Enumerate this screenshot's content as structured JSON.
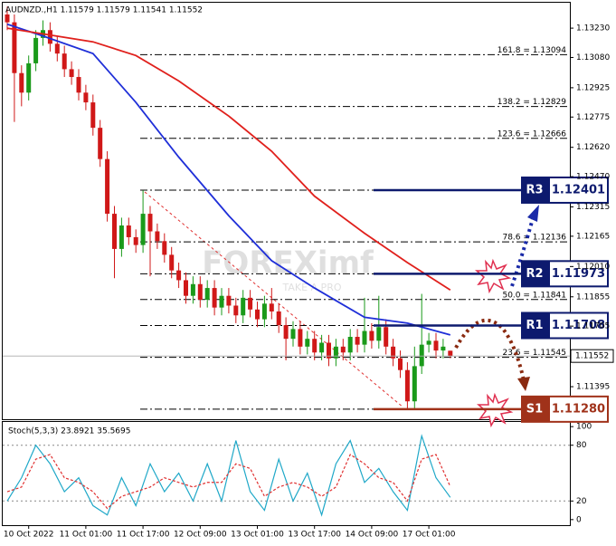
{
  "chart_data": [
    {
      "type": "candlestick",
      "title": "AUDNZD.,H1  1.11579 1.11579 1.11541 1.11552",
      "watermark": [
        "FOREXimf",
        "TAKE A PRO"
      ],
      "categories": [
        null,
        null,
        null,
        "10 Oct 2022",
        null,
        null,
        null,
        null,
        null,
        null,
        null,
        "11 Oct 01:00",
        null,
        null,
        null,
        null,
        null,
        null,
        null,
        "11 Oct 17:00",
        null,
        null,
        null,
        null,
        null,
        null,
        null,
        "12 Oct 09:00",
        null,
        null,
        null,
        null,
        null,
        null,
        null,
        "13 Oct 01:00",
        null,
        null,
        null,
        null,
        null,
        null,
        null,
        "13 Oct 17:00",
        null,
        null,
        null,
        null,
        null,
        null,
        null,
        "14 Oct 09:00",
        null,
        null,
        null,
        null,
        null,
        null,
        null,
        "17 Oct 01:00",
        null,
        null,
        null
      ],
      "open": [
        1.133,
        1.1326,
        1.13,
        1.129,
        1.1305,
        1.1318,
        1.1322,
        1.1315,
        1.131,
        1.1302,
        1.1298,
        1.129,
        1.1285,
        1.1272,
        1.1256,
        1.1228,
        1.121,
        1.1222,
        1.1216,
        1.1212,
        1.1228,
        1.1219,
        1.1214,
        1.1207,
        1.1199,
        1.1194,
        1.1186,
        1.1192,
        1.1184,
        1.119,
        1.118,
        1.1186,
        1.1181,
        1.1176,
        1.1185,
        1.1179,
        1.1174,
        1.1182,
        1.1178,
        1.1171,
        1.1164,
        1.1169,
        1.116,
        1.1164,
        1.1157,
        1.1162,
        1.1154,
        1.116,
        1.1157,
        1.1165,
        1.1161,
        1.1168,
        1.1163,
        1.117,
        1.116,
        1.1154,
        1.1148,
        1.1132,
        1.115,
        1.1161,
        1.1163,
        1.1158,
        1.11579
      ],
      "high": [
        1.1334,
        1.133,
        1.1304,
        1.1309,
        1.1322,
        1.1327,
        1.1326,
        1.1319,
        1.1314,
        1.1306,
        1.1302,
        1.1294,
        1.1289,
        1.1276,
        1.126,
        1.1232,
        1.1226,
        1.1226,
        1.122,
        1.124,
        1.1232,
        1.1223,
        1.1218,
        1.1211,
        1.1203,
        1.1198,
        1.1196,
        1.1196,
        1.1194,
        1.1194,
        1.119,
        1.119,
        1.1185,
        1.1189,
        1.1189,
        1.1183,
        1.1186,
        1.119,
        1.1182,
        1.1175,
        1.1173,
        1.1173,
        1.1168,
        1.1168,
        1.1166,
        1.1166,
        1.1164,
        1.1164,
        1.1169,
        1.1169,
        1.1185,
        1.1172,
        1.1186,
        1.1174,
        1.1164,
        1.1158,
        1.1152,
        1.116,
        1.1187,
        1.1167,
        1.1167,
        1.1164,
        1.11579
      ],
      "low": [
        1.1322,
        1.1275,
        1.1283,
        1.1286,
        1.1301,
        1.1314,
        1.1311,
        1.1306,
        1.1298,
        1.1294,
        1.1286,
        1.1281,
        1.1268,
        1.1252,
        1.1224,
        1.1195,
        1.1206,
        1.1212,
        1.1208,
        1.1208,
        1.1196,
        1.121,
        1.1203,
        1.1195,
        1.119,
        1.1182,
        1.1182,
        1.118,
        1.118,
        1.1176,
        1.1176,
        1.1177,
        1.1172,
        1.1172,
        1.1175,
        1.117,
        1.117,
        1.1174,
        1.1167,
        1.1153,
        1.116,
        1.1156,
        1.1156,
        1.1153,
        1.1153,
        1.115,
        1.115,
        1.1153,
        1.1153,
        1.1157,
        1.1157,
        1.1159,
        1.1159,
        1.1156,
        1.115,
        1.1144,
        1.1128,
        1.1128,
        1.1146,
        1.1157,
        1.1154,
        1.1154,
        1.11541
      ],
      "close": [
        1.1326,
        1.13,
        1.129,
        1.1305,
        1.1318,
        1.1322,
        1.1315,
        1.131,
        1.1302,
        1.1298,
        1.129,
        1.1285,
        1.1272,
        1.1256,
        1.1228,
        1.121,
        1.1222,
        1.1216,
        1.1212,
        1.1228,
        1.1219,
        1.1214,
        1.1207,
        1.1199,
        1.1194,
        1.1186,
        1.1192,
        1.1184,
        1.119,
        1.118,
        1.1186,
        1.1181,
        1.1176,
        1.1185,
        1.1179,
        1.1174,
        1.1182,
        1.1178,
        1.1171,
        1.1164,
        1.1169,
        1.116,
        1.1164,
        1.1157,
        1.1162,
        1.1154,
        1.116,
        1.1157,
        1.1165,
        1.1161,
        1.1168,
        1.1163,
        1.117,
        1.116,
        1.1154,
        1.1148,
        1.1132,
        1.115,
        1.1161,
        1.1163,
        1.1158,
        1.116,
        1.11552
      ],
      "up_color": "#1a9a1a",
      "down_color": "#d01818",
      "overlays": [
        {
          "color": "#1f2fd8",
          "x": [
            0,
            5,
            12,
            18,
            24,
            31,
            37,
            43,
            50,
            56,
            62
          ],
          "values": [
            1.1325,
            1.1319,
            1.131,
            1.1285,
            1.1257,
            1.1227,
            1.1204,
            1.119,
            1.1175,
            1.1172,
            1.1166
          ]
        },
        {
          "color": "#e0201c",
          "x": [
            0,
            12,
            18,
            24,
            31,
            37,
            43,
            50,
            56,
            62
          ],
          "values": [
            1.1323,
            1.1316,
            1.1309,
            1.1296,
            1.1278,
            1.126,
            1.1237,
            1.1218,
            1.1203,
            1.1189
          ]
        }
      ],
      "fib_levels": [
        {
          "value": 1.13094,
          "label": "161.8 = 1.13094"
        },
        {
          "value": 1.12829,
          "label": "138.2 = 1.12829"
        },
        {
          "value": 1.12666,
          "label": "123.6 = 1.12666"
        },
        {
          "value": 1.12401
        },
        {
          "value": 1.12136,
          "label": "78.6 = 1.12136"
        },
        {
          "value": 1.11973
        },
        {
          "value": 1.11841,
          "label": "50.0 = 1.11841"
        },
        {
          "value": 1.11708
        },
        {
          "value": 1.11545,
          "label": "23.6 = 1.11545"
        },
        {
          "value": 1.1128
        }
      ],
      "levels": [
        {
          "name": "R3",
          "value": 1.12401,
          "color": "#0d1a6e"
        },
        {
          "name": "R2",
          "value": 1.11973,
          "color": "#0d1a6e"
        },
        {
          "name": "R1",
          "value": 1.11708,
          "color": "#0d1a6e"
        },
        {
          "name": "S1",
          "value": 1.1128,
          "label": "1.11280",
          "color": "#a0321a"
        }
      ],
      "current_price": 1.11552,
      "ylim": [
        1.11233,
        1.13337
      ],
      "yticks": [
        {
          "value": 1.1323,
          "label": "1.13230"
        },
        {
          "value": 1.1308,
          "label": "1.13080"
        },
        {
          "value": 1.12925,
          "label": "1.12925"
        },
        {
          "value": 1.12775,
          "label": "1.12775"
        },
        {
          "value": 1.1262,
          "label": "1.12620"
        },
        {
          "value": 1.1247,
          "label": "1.12470"
        },
        {
          "value": 1.12315,
          "label": "1.12315"
        },
        {
          "value": 1.12165,
          "label": "1.12165"
        },
        {
          "value": 1.1201,
          "label": "1.12010"
        },
        {
          "value": 1.11855,
          "label": "1.11855"
        },
        {
          "value": 1.11705,
          "label": "1.11705"
        },
        {
          "value": 1.11395,
          "label": "1.11395"
        }
      ]
    },
    {
      "type": "line",
      "title": "Stoch(5,3,3) 23.8921 35.5695",
      "x": [
        0,
        2,
        4,
        6,
        8,
        10,
        12,
        14,
        16,
        18,
        20,
        22,
        24,
        26,
        28,
        30,
        32,
        34,
        36,
        38,
        40,
        42,
        44,
        46,
        48,
        50,
        52,
        54,
        56,
        58,
        60,
        62
      ],
      "series": [
        {
          "color": "#1fa8c8",
          "values": [
            20,
            45,
            80,
            60,
            30,
            45,
            15,
            5,
            45,
            15,
            60,
            30,
            50,
            20,
            60,
            20,
            85,
            30,
            10,
            65,
            20,
            50,
            5,
            60,
            85,
            40,
            55,
            30,
            10,
            90,
            45,
            23.8921
          ]
        },
        {
          "color": "#e03030",
          "dashed": true,
          "values": [
            30,
            35,
            65,
            70,
            45,
            40,
            30,
            12,
            25,
            30,
            35,
            45,
            40,
            35,
            40,
            40,
            60,
            55,
            25,
            35,
            40,
            35,
            25,
            35,
            70,
            60,
            45,
            40,
            20,
            65,
            70,
            35.5695
          ]
        }
      ],
      "levels": [
        20,
        80
      ],
      "ylim": [
        -6,
        106
      ],
      "yticks": [
        0,
        20,
        80,
        100
      ]
    }
  ]
}
